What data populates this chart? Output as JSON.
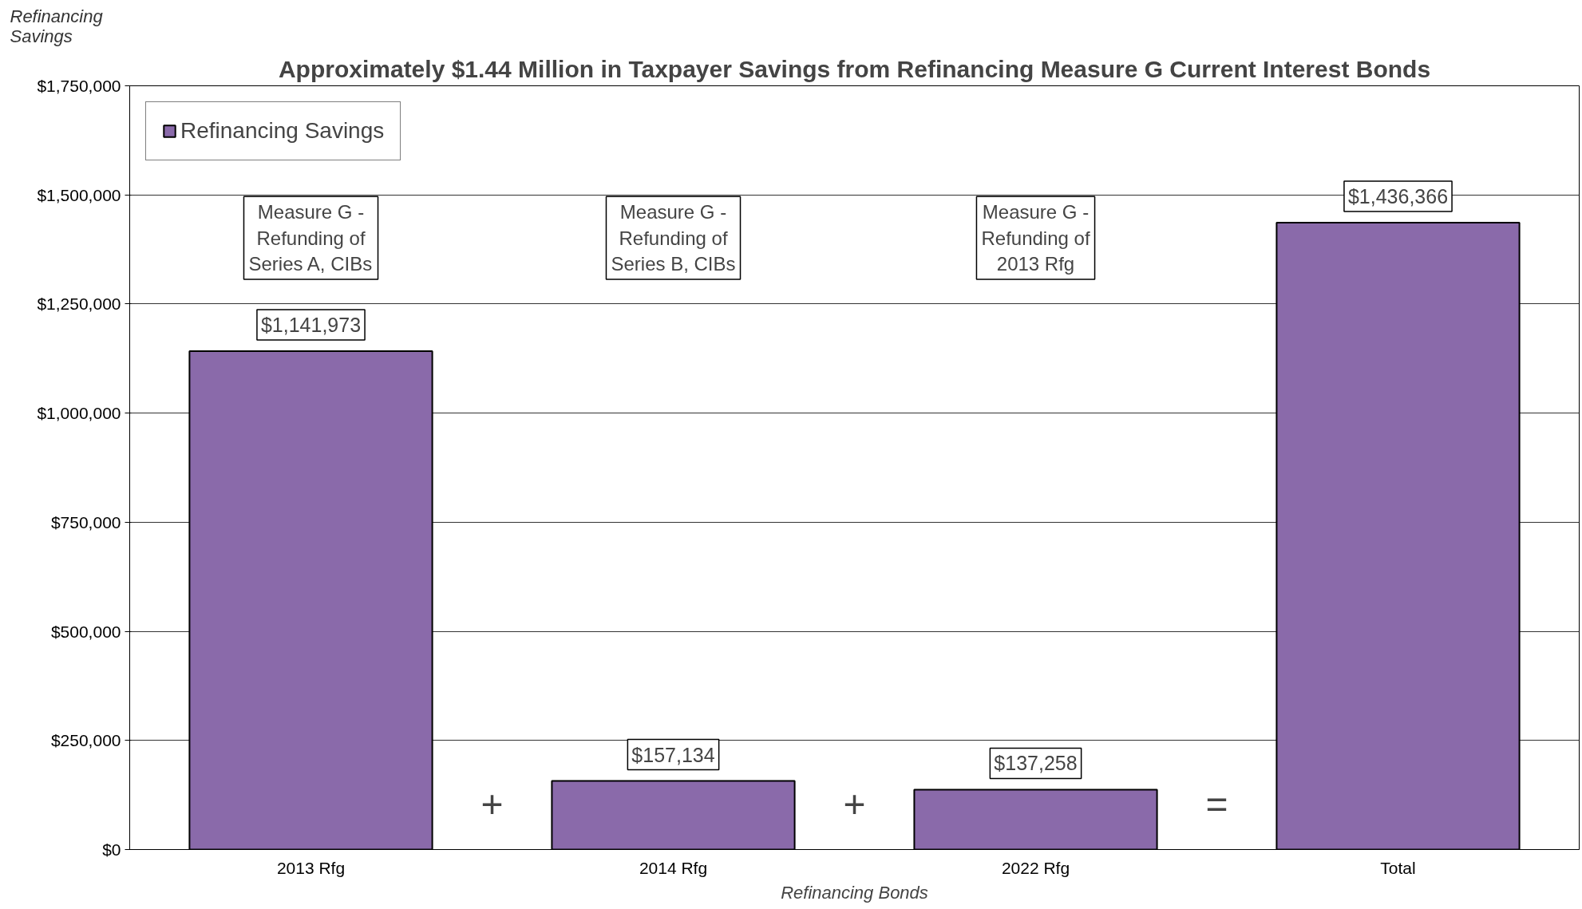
{
  "chart_data": {
    "type": "bar",
    "title": "Approximately $1.44 Million in Taxpayer Savings from Refinancing Measure G Current Interest Bonds",
    "xlabel": "Refinancing Bonds",
    "ylabel": "Refinancing Savings",
    "categories": [
      "2013 Rfg",
      "2014 Rfg",
      "2022 Rfg",
      "Total"
    ],
    "series": [
      {
        "name": "Refinancing Savings",
        "color": "#8a6aaa",
        "values": [
          1141973,
          157134,
          137258,
          1436366
        ]
      }
    ],
    "value_labels": [
      "$1,141,973",
      "$157,134",
      "$137,258",
      "$1,436,366"
    ],
    "ylim": [
      0,
      1750000
    ],
    "yticks": [
      {
        "value": 0,
        "label": "$0"
      },
      {
        "value": 250000,
        "label": "$250,000"
      },
      {
        "value": 500000,
        "label": "$500,000"
      },
      {
        "value": 750000,
        "label": "$750,000"
      },
      {
        "value": 1000000,
        "label": "$1,000,000"
      },
      {
        "value": 1250000,
        "label": "$1,250,000"
      },
      {
        "value": 1500000,
        "label": "$1,500,000"
      },
      {
        "value": 1750000,
        "label": "$1,750,000"
      }
    ],
    "grid": "y",
    "legend": "top left",
    "annotations": [
      "Measure G -\nRefunding of\nSeries A, CIBs",
      "Measure G -\nRefunding of\nSeries B, CIBs",
      "Measure G -\nRefunding of\n2013 Rfg",
      "+",
      "+",
      "="
    ]
  }
}
